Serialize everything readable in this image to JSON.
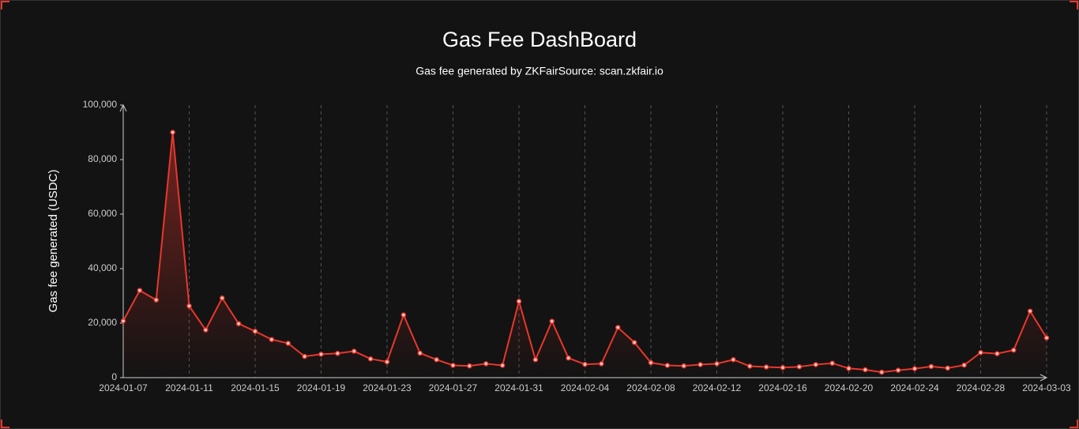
{
  "chart_data": {
    "type": "line",
    "title": "Gas Fee DashBoard",
    "subtitle": "Gas fee generated by ZKFairSource: scan.zkfair.io",
    "y_label": "Gas fee generated (USDC)",
    "x": [
      "2024-01-07",
      "2024-01-08",
      "2024-01-09",
      "2024-01-10",
      "2024-01-11",
      "2024-01-12",
      "2024-01-13",
      "2024-01-14",
      "2024-01-15",
      "2024-01-16",
      "2024-01-17",
      "2024-01-18",
      "2024-01-19",
      "2024-01-20",
      "2024-01-21",
      "2024-01-22",
      "2024-01-23",
      "2024-01-24",
      "2024-01-25",
      "2024-01-26",
      "2024-01-27",
      "2024-01-28",
      "2024-01-29",
      "2024-01-30",
      "2024-01-31",
      "2024-02-01",
      "2024-02-02",
      "2024-02-03",
      "2024-02-04",
      "2024-02-05",
      "2024-02-06",
      "2024-02-07",
      "2024-02-08",
      "2024-02-09",
      "2024-02-10",
      "2024-02-11",
      "2024-02-12",
      "2024-02-13",
      "2024-02-14",
      "2024-02-15",
      "2024-02-16",
      "2024-02-17",
      "2024-02-18",
      "2024-02-19",
      "2024-02-20",
      "2024-02-21",
      "2024-02-22",
      "2024-02-23",
      "2024-02-24",
      "2024-02-25",
      "2024-02-26",
      "2024-02-27",
      "2024-02-28",
      "2024-02-29",
      "2024-03-01",
      "2024-03-02",
      "2024-03-03"
    ],
    "series": [
      {
        "color": "#e8372c",
        "values": [
          20800,
          32000,
          28500,
          90000,
          26300,
          17500,
          29200,
          19800,
          17000,
          14000,
          12600,
          7800,
          8600,
          8900,
          9700,
          6900,
          5800,
          23000,
          9000,
          6600,
          4500,
          4300,
          5100,
          4500,
          28000,
          6600,
          20700,
          7200,
          4900,
          5100,
          18400,
          12900,
          5500,
          4500,
          4300,
          4800,
          5100,
          6600,
          4200,
          3900,
          3700,
          4000,
          4800,
          5300,
          3400,
          2900,
          2000,
          2700,
          3300,
          4100,
          3500,
          4600,
          9200,
          8800,
          10100,
          24400,
          14600
        ]
      }
    ],
    "xlim": [
      "2024-01-07",
      "2024-03-03"
    ],
    "xticks": [
      "2024-01-07",
      "2024-01-11",
      "2024-01-15",
      "2024-01-19",
      "2024-01-23",
      "2024-01-27",
      "2024-01-31",
      "2024-02-04",
      "2024-02-08",
      "2024-02-12",
      "2024-02-16",
      "2024-02-20",
      "2024-02-24",
      "2024-02-28",
      "2024-03-03"
    ],
    "ylim": [
      0,
      100000
    ],
    "yticks": [
      0,
      {
        "value": 20000,
        "label": "20,000"
      },
      {
        "value": 40000,
        "label": "40,000"
      },
      {
        "value": 60000,
        "label": "60,000"
      },
      {
        "value": 80000,
        "label": "80,000"
      },
      {
        "value": 100000,
        "label": "100,000"
      }
    ],
    "grid": true
  }
}
